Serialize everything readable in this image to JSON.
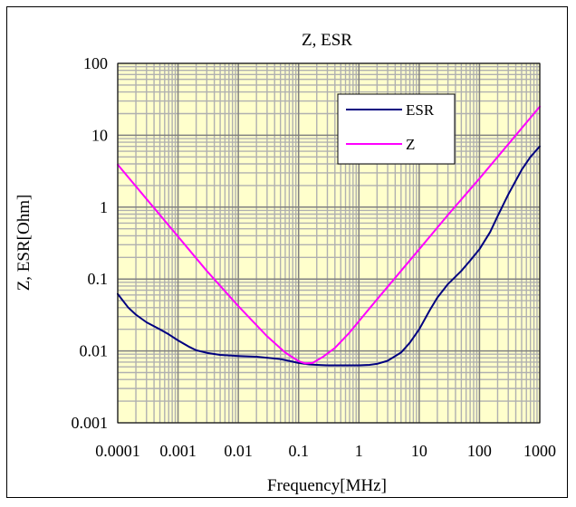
{
  "chart_data": {
    "type": "line",
    "title": "Z, ESR",
    "xlabel": "Frequency[MHz]",
    "ylabel": "Z, ESR[Ohm]",
    "x_scale": "log",
    "y_scale": "log",
    "xlim": [
      0.0001,
      1000
    ],
    "ylim": [
      0.001,
      100
    ],
    "x_ticks": [
      {
        "value": 0.0001,
        "label": "0.0001"
      },
      {
        "value": 0.001,
        "label": "0.001"
      },
      {
        "value": 0.01,
        "label": "0.01"
      },
      {
        "value": 0.1,
        "label": "0.1"
      },
      {
        "value": 1,
        "label": "1"
      },
      {
        "value": 10,
        "label": "10"
      },
      {
        "value": 100,
        "label": "100"
      },
      {
        "value": 1000,
        "label": "1000"
      }
    ],
    "y_ticks": [
      {
        "value": 0.001,
        "label": "0.001"
      },
      {
        "value": 0.01,
        "label": "0.01"
      },
      {
        "value": 0.1,
        "label": "0.1"
      },
      {
        "value": 1,
        "label": "1"
      },
      {
        "value": 10,
        "label": "10"
      },
      {
        "value": 100,
        "label": "100"
      }
    ],
    "grid": true,
    "legend": "top-right",
    "colors": {
      "plot_bg": "#ffffcc",
      "grid": "#b0b0b0",
      "axis": "#000000"
    },
    "series": [
      {
        "name": "ESR",
        "color": "#000080",
        "x": [
          0.0001,
          0.00015,
          0.0002,
          0.0003,
          0.0005,
          0.0007,
          0.001,
          0.0015,
          0.002,
          0.003,
          0.005,
          0.01,
          0.02,
          0.05,
          0.1,
          0.15,
          0.2,
          0.3,
          0.5,
          1,
          1.5,
          2,
          3,
          5,
          7,
          10,
          15,
          20,
          30,
          50,
          70,
          100,
          150,
          200,
          300,
          500,
          700,
          1000
        ],
        "y": [
          0.062,
          0.04,
          0.032,
          0.025,
          0.02,
          0.017,
          0.014,
          0.0115,
          0.0102,
          0.0094,
          0.0088,
          0.0085,
          0.0083,
          0.0077,
          0.0068,
          0.0065,
          0.0064,
          0.0063,
          0.0063,
          0.0063,
          0.0064,
          0.0066,
          0.0073,
          0.0095,
          0.013,
          0.02,
          0.037,
          0.055,
          0.085,
          0.13,
          0.18,
          0.26,
          0.45,
          0.75,
          1.5,
          3.3,
          5.0,
          7.0
        ]
      },
      {
        "name": "Z",
        "color": "#ff00ff",
        "x": [
          0.0001,
          0.0003,
          0.001,
          0.003,
          0.01,
          0.03,
          0.06,
          0.1,
          0.13,
          0.17,
          0.25,
          0.4,
          0.7,
          1,
          2,
          3,
          5,
          10,
          30,
          100,
          300,
          1000
        ],
        "y": [
          3.9,
          1.3,
          0.39,
          0.13,
          0.042,
          0.016,
          0.0095,
          0.0072,
          0.0067,
          0.0068,
          0.0082,
          0.011,
          0.018,
          0.026,
          0.052,
          0.078,
          0.13,
          0.26,
          0.78,
          2.5,
          7.5,
          25
        ]
      }
    ]
  }
}
